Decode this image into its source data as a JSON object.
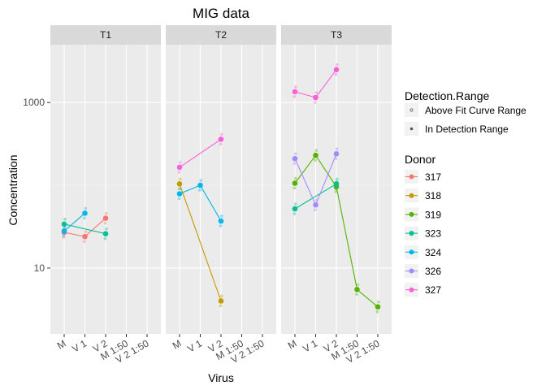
{
  "chart_data": {
    "type": "line",
    "title": "MIG data",
    "xlabel": "Virus",
    "ylabel": "Concentration",
    "y_scale": "log10",
    "ylim": [
      1.6,
      5000
    ],
    "y_ticks": [
      10,
      1000
    ],
    "categories": [
      "M",
      "V 1",
      "V 2",
      "M 1:50",
      "V 2 1:50"
    ],
    "facets": [
      "T1",
      "T2",
      "T3"
    ],
    "grid": true,
    "legend_placement": "right",
    "legends": {
      "shape_title": "Detection.Range",
      "shape_entries": [
        "Above Fit Curve Range",
        "In Detection Range"
      ],
      "color_title": "Donor"
    },
    "series": [
      {
        "name": "317",
        "color": "#F8766D",
        "values": {
          "T1": [
            {
              "x": "M",
              "y": 27
            },
            {
              "x": "V 1",
              "y": 24
            },
            {
              "x": "V 2",
              "y": 40
            }
          ]
        }
      },
      {
        "name": "318",
        "color": "#C49A00",
        "values": {
          "T2": [
            {
              "x": "M",
              "y": 104
            },
            {
              "x": "V 2",
              "y": 4
            }
          ]
        }
      },
      {
        "name": "319",
        "color": "#53B400",
        "values": {
          "T3": [
            {
              "x": "M",
              "y": 106
            },
            {
              "x": "V 1",
              "y": 230
            },
            {
              "x": "V 2",
              "y": 96
            },
            {
              "x": "M 1:50",
              "y": 5.5
            },
            {
              "x": "V 2 1:50",
              "y": 3.4
            }
          ]
        }
      },
      {
        "name": "323",
        "color": "#00C094",
        "values": {
          "T1": [
            {
              "x": "M",
              "y": 34
            },
            {
              "x": "V 2",
              "y": 26
            }
          ],
          "T3": [
            {
              "x": "M",
              "y": 52
            },
            {
              "x": "V 2",
              "y": 104
            }
          ]
        }
      },
      {
        "name": "324",
        "color": "#00B6EB",
        "values": {
          "T1": [
            {
              "x": "M",
              "y": 28
            },
            {
              "x": "V 1",
              "y": 46
            }
          ],
          "T2": [
            {
              "x": "M",
              "y": 79
            },
            {
              "x": "V 1",
              "y": 100
            },
            {
              "x": "V 2",
              "y": 37
            }
          ]
        }
      },
      {
        "name": "326",
        "color": "#A58AFF",
        "values": {
          "T3": [
            {
              "x": "M",
              "y": 210
            },
            {
              "x": "V 1",
              "y": 58
            },
            {
              "x": "V 2",
              "y": 240
            }
          ]
        }
      },
      {
        "name": "327",
        "color": "#FB61D7",
        "values": {
          "T2": [
            {
              "x": "M",
              "y": 165
            },
            {
              "x": "V 2",
              "y": 360
            }
          ],
          "T3": [
            {
              "x": "M",
              "y": 1350
            },
            {
              "x": "V 1",
              "y": 1150
            },
            {
              "x": "V 2",
              "y": 2500
            }
          ]
        }
      }
    ]
  }
}
